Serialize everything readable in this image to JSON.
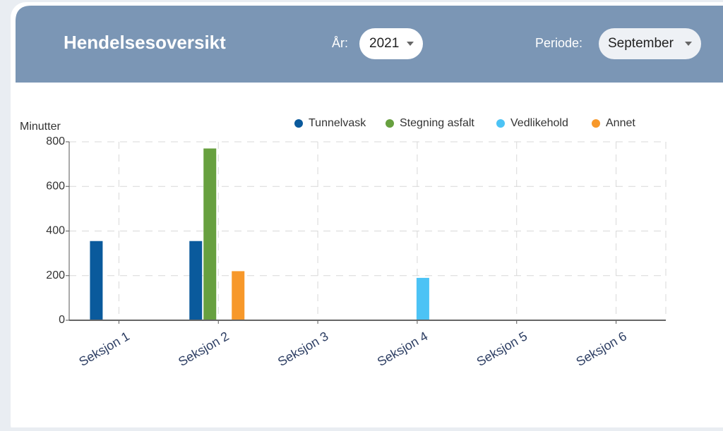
{
  "header": {
    "title": "Hendelsesoversikt",
    "year_label": "År:",
    "year": "2021",
    "period_label": "Periode:",
    "period": "September"
  },
  "chart_data": {
    "type": "bar",
    "ylabel": "Minutter",
    "categories": [
      "Seksjon 1",
      "Seksjon 2",
      "Seksjon 3",
      "Seksjon 4",
      "Seksjon 5",
      "Seksjon 6"
    ],
    "series": [
      {
        "name": "Tunnelvask",
        "color": "#0a5a9c",
        "values": [
          355,
          355,
          0,
          0,
          0,
          0
        ]
      },
      {
        "name": "Stegning asfalt",
        "color": "#67a03f",
        "values": [
          0,
          770,
          0,
          0,
          0,
          0
        ]
      },
      {
        "name": "Vedlikehold",
        "color": "#4cc3f5",
        "values": [
          0,
          0,
          0,
          190,
          0,
          0
        ]
      },
      {
        "name": "Annet",
        "color": "#f7982a",
        "values": [
          0,
          220,
          0,
          0,
          0,
          0
        ]
      }
    ],
    "ylim": [
      0,
      800
    ],
    "yticks": [
      0,
      200,
      400,
      600,
      800
    ],
    "grid": true,
    "legend": "top"
  }
}
